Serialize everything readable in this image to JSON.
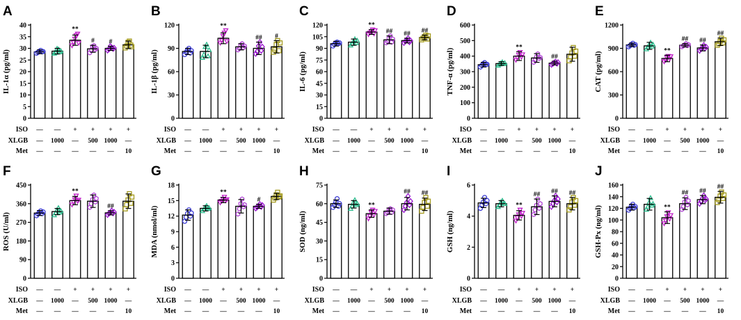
{
  "figure": {
    "treatment_rows": [
      {
        "label": "ISO",
        "values": [
          "—",
          "—",
          "+",
          "+",
          "+",
          "+"
        ]
      },
      {
        "label": "XLGB",
        "values": [
          "—",
          "1000",
          "—",
          "500",
          "1000",
          "—"
        ]
      },
      {
        "label": "Met",
        "values": [
          "—",
          "—",
          "—",
          "—",
          "—",
          "10"
        ]
      }
    ],
    "group_colors": [
      "#3d3dd6",
      "#2ebd8f",
      "#c020c8",
      "#b24ad6",
      "#9a18d0",
      "#a39a1e"
    ]
  },
  "chart_data": [
    {
      "type": "bar",
      "panel": "A",
      "ylabel": "IL-1α (pg/ml)",
      "ylim": [
        0,
        40
      ],
      "yticks": [
        0,
        5,
        10,
        15,
        20,
        25,
        30,
        35,
        40
      ],
      "values": [
        28.5,
        28.8,
        33.5,
        29.8,
        30.0,
        31.5
      ],
      "errors": [
        0.8,
        1.2,
        2.2,
        1.5,
        0.9,
        1.6
      ],
      "points": [
        [
          27.9,
          28.3,
          28.7,
          29.1,
          28.5,
          28.6
        ],
        [
          27.8,
          28.2,
          29.9,
          29.6,
          28.4,
          28.9
        ],
        [
          31.2,
          32.5,
          34.1,
          35.6,
          36.2,
          32.3
        ],
        [
          28.1,
          29.2,
          30.8,
          31.2,
          29.5,
          30.0
        ],
        [
          29.1,
          29.6,
          30.9,
          30.4,
          29.8,
          30.2
        ],
        [
          30.2,
          31.0,
          32.6,
          33.1,
          31.4,
          30.7
        ]
      ],
      "annotations": [
        "",
        "",
        "**",
        "#",
        "#",
        ""
      ]
    },
    {
      "type": "bar",
      "panel": "B",
      "ylabel": "IL-1β (pg/ml)",
      "ylim": [
        0,
        120
      ],
      "yticks": [
        0,
        30,
        60,
        90,
        120
      ],
      "values": [
        86,
        86,
        103,
        92,
        90,
        92
      ],
      "errors": [
        4,
        8,
        7,
        4,
        8,
        8
      ],
      "points": [
        [
          82,
          85,
          88,
          90,
          84,
          87
        ],
        [
          78,
          82,
          92,
          95,
          80,
          88
        ],
        [
          97,
          100,
          106,
          110,
          113,
          99
        ],
        [
          88,
          90,
          94,
          96,
          91,
          93
        ],
        [
          83,
          86,
          93,
          98,
          87,
          92
        ],
        [
          85,
          88,
          95,
          100,
          87,
          97
        ]
      ],
      "annotations": [
        "",
        "",
        "**",
        "",
        "##",
        "#"
      ]
    },
    {
      "type": "bar",
      "panel": "C",
      "ylabel": "IL-6 (pg/ml)",
      "ylim": [
        0,
        120
      ],
      "yticks": [
        0,
        15,
        30,
        45,
        60,
        75,
        90,
        105,
        120
      ],
      "values": [
        96,
        98,
        111,
        101,
        100,
        104
      ],
      "errors": [
        3,
        4,
        3,
        5,
        3,
        3
      ],
      "points": [
        [
          93,
          95,
          97,
          98,
          96,
          97
        ],
        [
          94,
          96,
          99,
          102,
          97,
          100
        ],
        [
          108,
          110,
          112,
          114,
          109,
          113
        ],
        [
          97,
          99,
          103,
          106,
          98,
          102
        ],
        [
          97,
          99,
          101,
          103,
          98,
          100
        ],
        [
          101,
          103,
          105,
          107,
          102,
          106
        ]
      ],
      "annotations": [
        "",
        "",
        "**",
        "##",
        "##",
        "##"
      ]
    },
    {
      "type": "bar",
      "panel": "D",
      "ylabel": "TNF-α (pg/ml)",
      "ylim": [
        0,
        600
      ],
      "yticks": [
        0,
        100,
        200,
        300,
        400,
        500,
        600
      ],
      "values": [
        345,
        352,
        400,
        388,
        355,
        412
      ],
      "errors": [
        15,
        12,
        28,
        28,
        12,
        45
      ],
      "points": [
        [
          330,
          340,
          350,
          358,
          345,
          347
        ],
        [
          340,
          348,
          355,
          362,
          350,
          356
        ],
        [
          375,
          390,
          408,
          425,
          395,
          410
        ],
        [
          360,
          375,
          395,
          415,
          385,
          392
        ],
        [
          345,
          350,
          358,
          364,
          352,
          360
        ],
        [
          370,
          395,
          420,
          455,
          400,
          432
        ]
      ],
      "annotations": [
        "",
        "",
        "**",
        "",
        "##",
        ""
      ]
    },
    {
      "type": "bar",
      "panel": "E",
      "ylabel": "CAT (pg/ml)",
      "ylim": [
        0,
        1200
      ],
      "yticks": [
        0,
        300,
        600,
        900,
        1200
      ],
      "values": [
        945,
        932,
        770,
        940,
        905,
        985
      ],
      "errors": [
        22,
        45,
        42,
        22,
        38,
        48
      ],
      "points": [
        [
          920,
          935,
          950,
          965,
          940,
          948
        ],
        [
          890,
          915,
          940,
          975,
          925,
          950
        ],
        [
          730,
          750,
          780,
          800,
          765,
          795
        ],
        [
          920,
          932,
          945,
          960,
          935,
          948
        ],
        [
          870,
          890,
          912,
          940,
          900,
          918
        ],
        [
          940,
          960,
          990,
          1030,
          970,
          1010
        ]
      ],
      "annotations": [
        "",
        "",
        "**",
        "##",
        "##",
        "##"
      ]
    },
    {
      "type": "bar",
      "panel": "F",
      "ylabel": "ROS (U/ml)",
      "ylim": [
        0,
        450
      ],
      "yticks": [
        0,
        90,
        180,
        270,
        360,
        450
      ],
      "values": [
        315,
        322,
        375,
        372,
        316,
        372
      ],
      "errors": [
        12,
        15,
        20,
        30,
        10,
        35
      ],
      "points": [
        [
          302,
          310,
          318,
          325,
          312,
          320
        ],
        [
          305,
          315,
          330,
          340,
          318,
          325
        ],
        [
          355,
          368,
          380,
          398,
          372,
          378
        ],
        [
          342,
          360,
          380,
          402,
          368,
          385
        ],
        [
          306,
          312,
          318,
          326,
          314,
          320
        ],
        [
          335,
          355,
          378,
          408,
          362,
          392
        ]
      ],
      "annotations": [
        "",
        "",
        "**",
        "",
        "##",
        ""
      ]
    },
    {
      "type": "bar",
      "panel": "G",
      "ylabel": "MDA (nmol/ml)",
      "ylim": [
        0,
        18
      ],
      "yticks": [
        0,
        3,
        6,
        9,
        12,
        15,
        18
      ],
      "values": [
        12.2,
        13.5,
        15.1,
        13.9,
        13.9,
        15.8
      ],
      "errors": [
        1.0,
        0.5,
        0.5,
        1.3,
        0.4,
        0.6
      ],
      "points": [
        [
          11.0,
          11.8,
          12.5,
          13.2,
          12.0,
          12.6
        ],
        [
          13.0,
          13.3,
          13.7,
          14.0,
          13.4,
          13.6
        ],
        [
          14.6,
          14.9,
          15.3,
          15.7,
          15.0,
          15.2
        ],
        [
          12.4,
          13.4,
          14.4,
          15.3,
          13.8,
          14.2
        ],
        [
          13.5,
          13.7,
          14.0,
          14.3,
          13.8,
          14.1
        ],
        [
          15.1,
          15.5,
          16.1,
          16.6,
          15.7,
          15.9
        ]
      ],
      "annotations": [
        "",
        "",
        "**",
        "",
        "#",
        ""
      ]
    },
    {
      "type": "bar",
      "panel": "H",
      "ylabel": "SOD (ng/ml)",
      "ylim": [
        0,
        75
      ],
      "yticks": [
        0,
        15,
        30,
        45,
        60,
        75
      ],
      "values": [
        60,
        59.5,
        52,
        54,
        60,
        59.5
      ],
      "errors": [
        3,
        3,
        3,
        2.5,
        5,
        5
      ],
      "points": [
        [
          57,
          59,
          61,
          64,
          58,
          60
        ],
        [
          56,
          58,
          61,
          63,
          59,
          60
        ],
        [
          48,
          50,
          53,
          55,
          51,
          54
        ],
        [
          52,
          53,
          55,
          56,
          53,
          55
        ],
        [
          55,
          58,
          61,
          66,
          59,
          62
        ],
        [
          54,
          57,
          61,
          65,
          58,
          62
        ]
      ],
      "annotations": [
        "",
        "",
        "**",
        "",
        "##",
        "##"
      ]
    },
    {
      "type": "bar",
      "panel": "I",
      "ylabel": "GSH (ng/ml)",
      "ylim": [
        0,
        6
      ],
      "yticks": [
        0,
        2,
        4,
        6
      ],
      "values": [
        4.85,
        4.8,
        4.05,
        4.6,
        4.95,
        4.8
      ],
      "errors": [
        0.3,
        0.2,
        0.3,
        0.5,
        0.35,
        0.4
      ],
      "points": [
        [
          4.5,
          4.7,
          4.9,
          5.2,
          4.8,
          5.0
        ],
        [
          4.6,
          4.7,
          4.9,
          5.0,
          4.8,
          4.8
        ],
        [
          3.7,
          3.9,
          4.1,
          4.4,
          4.0,
          4.2
        ],
        [
          4.1,
          4.4,
          4.7,
          5.1,
          4.5,
          4.8
        ],
        [
          4.6,
          4.8,
          5.0,
          5.3,
          4.9,
          5.1
        ],
        [
          4.4,
          4.6,
          4.9,
          5.2,
          4.7,
          5.0
        ]
      ],
      "annotations": [
        "",
        "",
        "**",
        "##",
        "##",
        "##"
      ]
    },
    {
      "type": "bar",
      "panel": "J",
      "ylabel": "GSH-Px (ng/ml)",
      "ylim": [
        0,
        160
      ],
      "yticks": [
        0,
        20,
        40,
        60,
        80,
        100,
        120,
        140,
        160
      ],
      "values": [
        122,
        127,
        104,
        128,
        135,
        139
      ],
      "errors": [
        5,
        10,
        10,
        10,
        7,
        10
      ],
      "points": [
        [
          117,
          120,
          124,
          127,
          121,
          123
        ],
        [
          118,
          123,
          130,
          138,
          125,
          128
        ],
        [
          94,
          99,
          106,
          113,
          102,
          108
        ],
        [
          118,
          123,
          131,
          139,
          126,
          133
        ],
        [
          128,
          132,
          137,
          142,
          134,
          136
        ],
        [
          130,
          135,
          141,
          148,
          137,
          143
        ]
      ],
      "annotations": [
        "",
        "",
        "**",
        "##",
        "##",
        "##"
      ]
    }
  ]
}
